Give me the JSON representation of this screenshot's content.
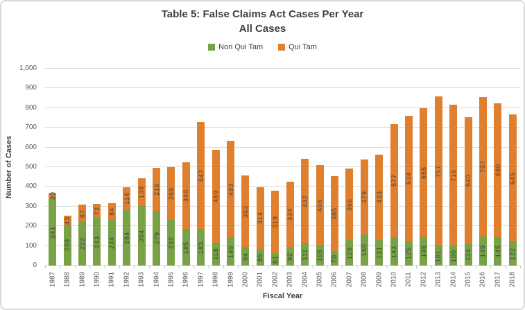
{
  "axes": {
    "y_ticks": [
      "0",
      "100",
      "200",
      "300",
      "400",
      "500",
      "600",
      "700",
      "800",
      "900",
      "1,000"
    ]
  },
  "chart_data": {
    "type": "bar",
    "stacked": true,
    "title": "Table 5: False Claims Act Cases Per Year",
    "subtitle": "All Cases",
    "xlabel": "Fiscal Year",
    "ylabel": "Number of Cases",
    "ylim": [
      0,
      1000
    ],
    "ytick_step": 100,
    "grid": true,
    "legend_position": "top",
    "categories": [
      "1987",
      "1988",
      "1989",
      "1990",
      "1991",
      "1992",
      "1993",
      "1994",
      "1995",
      "1996",
      "1997",
      "1998",
      "1999",
      "2000",
      "2001",
      "2002",
      "2003",
      "2004",
      "2005",
      "2006",
      "2007",
      "2008",
      "2009",
      "2010",
      "2011",
      "2012",
      "2013",
      "2014",
      "2015",
      "2016",
      "2017",
      "2018"
    ],
    "series": [
      {
        "name": "Non Qui Tam",
        "color": "#77A245",
        "values": [
          341,
          209,
          222,
          243,
          234,
          284,
          304,
          279,
          232,
          185,
          183,
          118,
          140,
          94,
          85,
          61,
          92,
          111,
          105,
          70,
          129,
          160,
          131,
          143,
          125,
          146,
          101,
          100,
          114,
          149,
          145,
          122
        ]
      },
      {
        "name": "Qui Tam",
        "color": "#E0802F",
        "values": [
          30,
          43,
          87,
          72,
          84,
          114,
          138,
          216,
          269,
          340,
          547,
          469,
          493,
          363,
          314,
          319,
          334,
          432,
          406,
          385,
          365,
          379,
          433,
          577,
          634,
          655,
          757,
          716,
          640,
          707,
          680,
          645
        ]
      }
    ]
  }
}
